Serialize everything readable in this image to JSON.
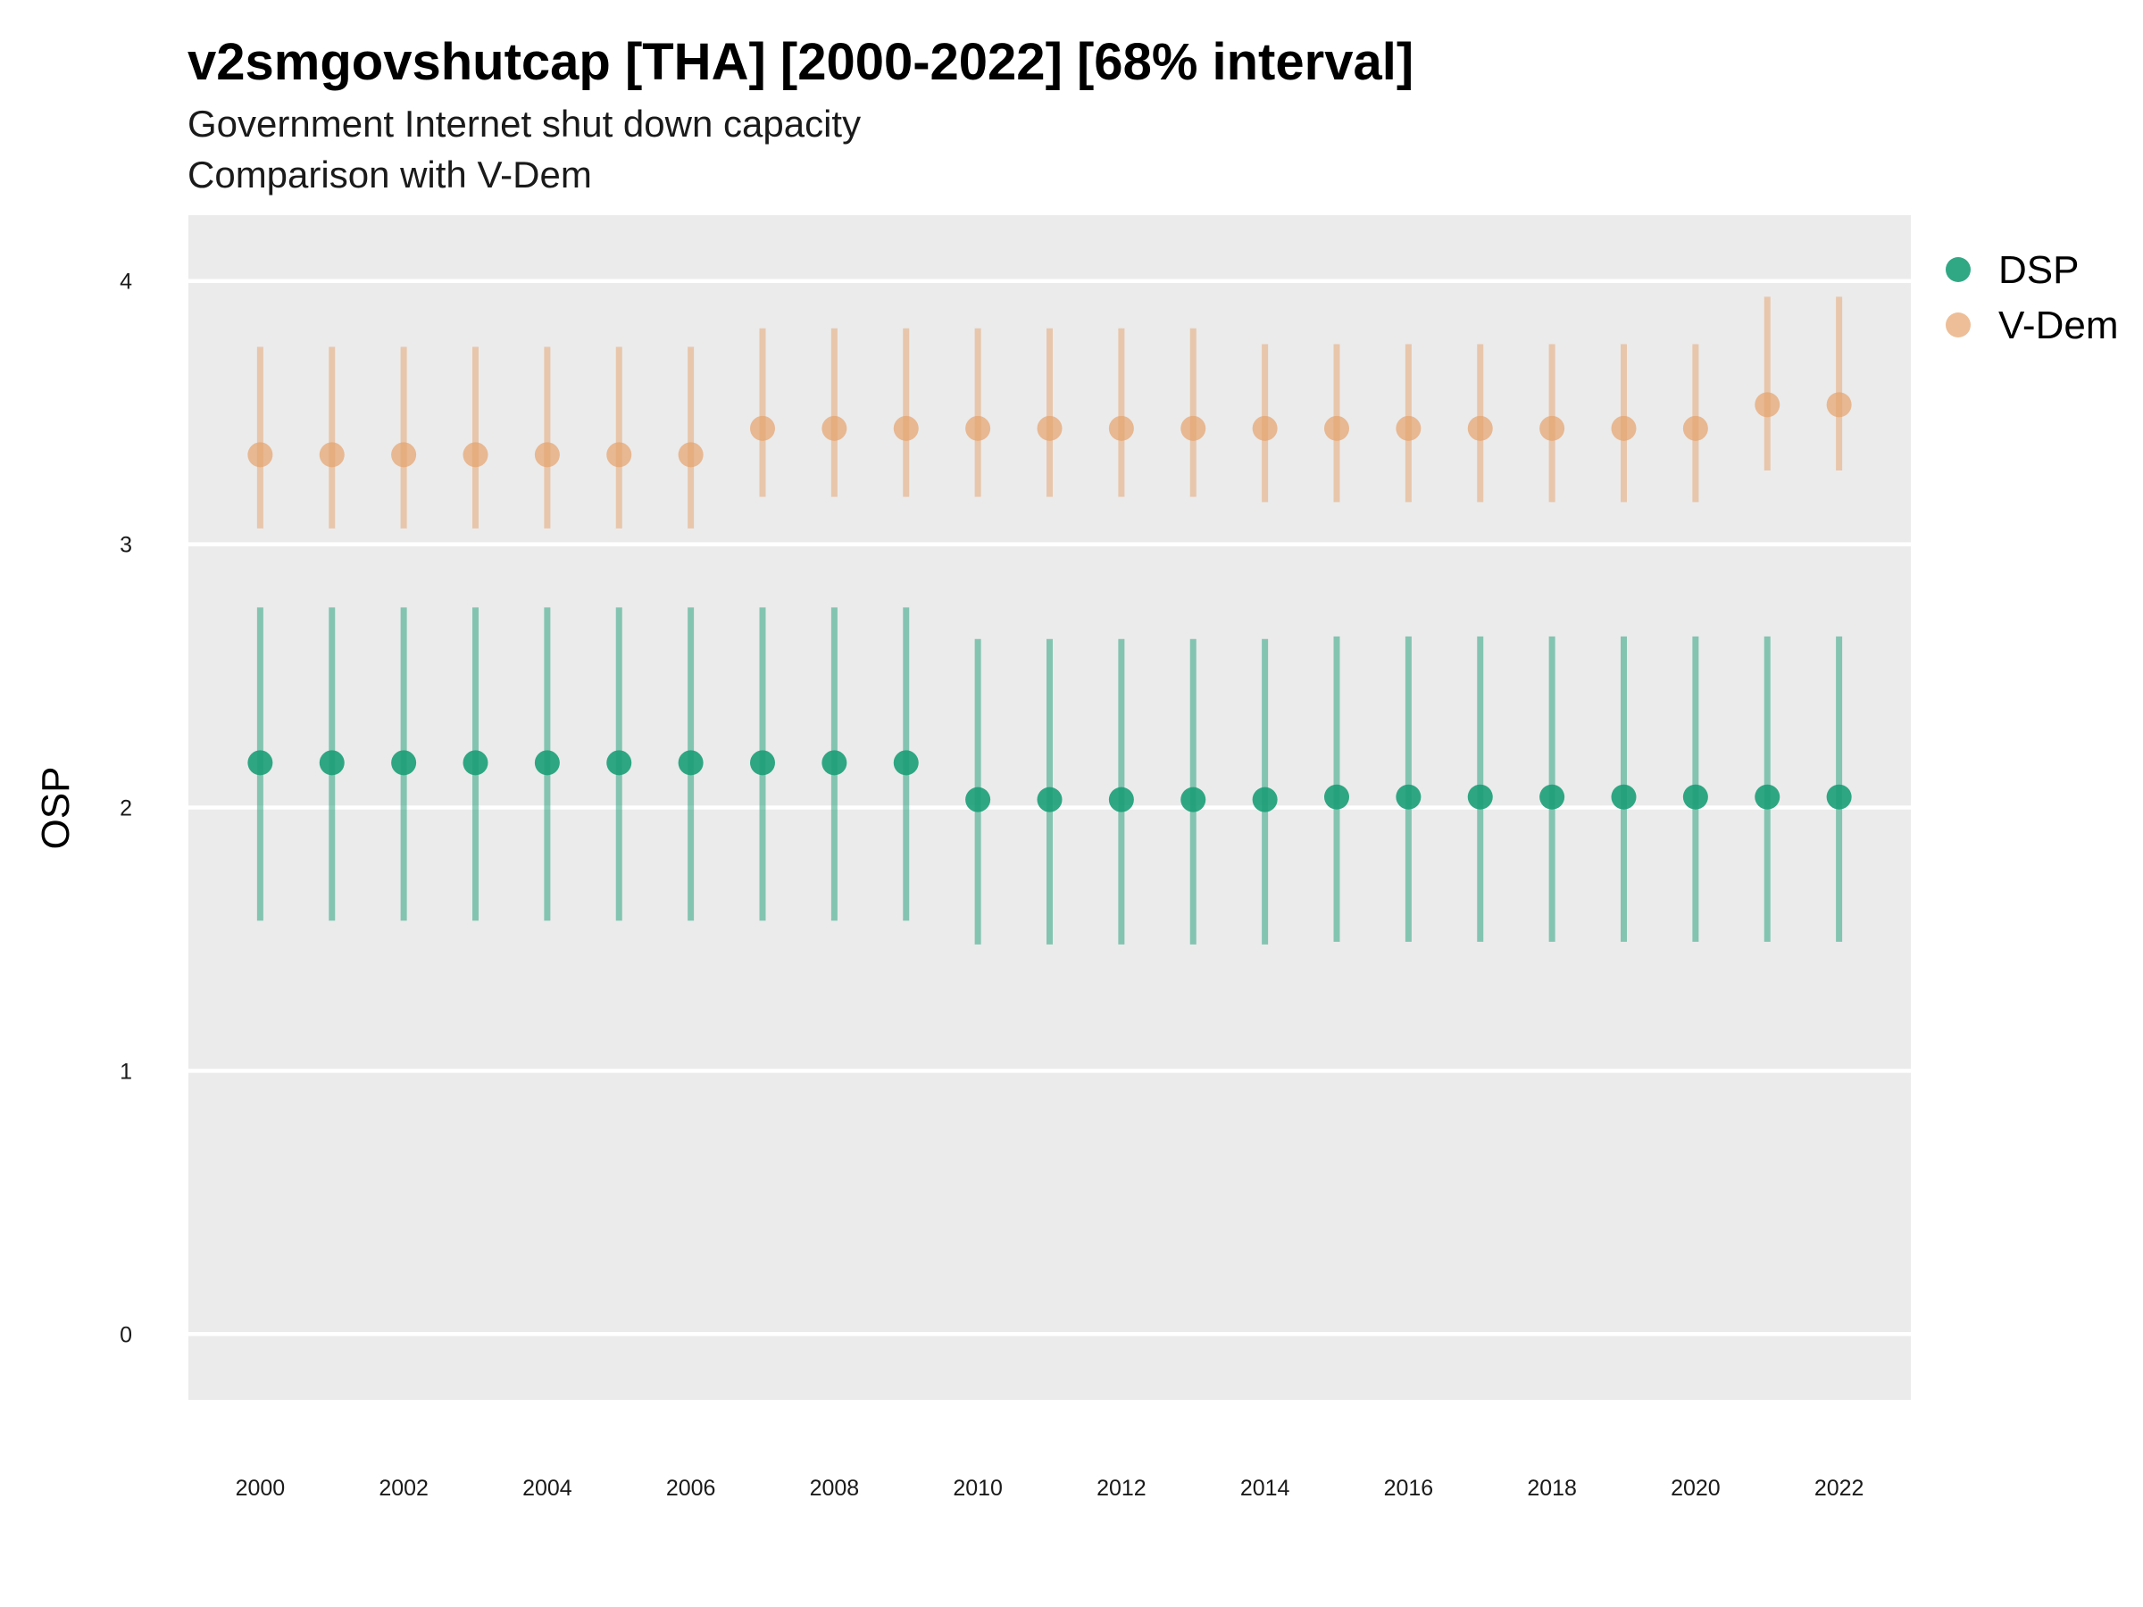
{
  "chart_data": {
    "type": "scatter",
    "title": "v2smgovshutcap [THA] [2000-2022] [68% interval]",
    "subtitle_lines": [
      "Government Internet shut down capacity",
      "Comparison with V-Dem"
    ],
    "xlabel": "",
    "ylabel": "OSP",
    "x": [
      2000,
      2001,
      2002,
      2003,
      2004,
      2005,
      2006,
      2007,
      2008,
      2009,
      2010,
      2011,
      2012,
      2013,
      2014,
      2015,
      2016,
      2017,
      2018,
      2019,
      2020,
      2021,
      2022
    ],
    "x_ticks": [
      "2000",
      "2002",
      "2004",
      "2006",
      "2008",
      "2010",
      "2012",
      "2014",
      "2016",
      "2018",
      "2020",
      "2022"
    ],
    "x_tick_values": [
      2000,
      2002,
      2004,
      2006,
      2008,
      2010,
      2012,
      2014,
      2016,
      2018,
      2020,
      2022
    ],
    "y_ticks": [
      "0",
      "1",
      "2",
      "3",
      "4"
    ],
    "y_tick_values": [
      0,
      1,
      2,
      3,
      4
    ],
    "xlim": [
      1999,
      2023
    ],
    "ylim": [
      -0.25,
      4.25
    ],
    "grid": true,
    "legend_position": "top-right",
    "series": [
      {
        "name": "DSP",
        "color": "#1b9e77",
        "values": [
          2.17,
          2.17,
          2.17,
          2.17,
          2.17,
          2.17,
          2.17,
          2.17,
          2.17,
          2.17,
          2.03,
          2.03,
          2.03,
          2.03,
          2.03,
          2.04,
          2.04,
          2.04,
          2.04,
          2.04,
          2.04,
          2.04,
          2.04
        ],
        "lower": [
          1.57,
          1.57,
          1.57,
          1.57,
          1.57,
          1.57,
          1.57,
          1.57,
          1.57,
          1.57,
          1.48,
          1.48,
          1.48,
          1.48,
          1.48,
          1.49,
          1.49,
          1.49,
          1.49,
          1.49,
          1.49,
          1.49,
          1.49
        ],
        "upper": [
          2.76,
          2.76,
          2.76,
          2.76,
          2.76,
          2.76,
          2.76,
          2.76,
          2.76,
          2.76,
          2.64,
          2.64,
          2.64,
          2.64,
          2.64,
          2.65,
          2.65,
          2.65,
          2.65,
          2.65,
          2.65,
          2.65,
          2.65
        ]
      },
      {
        "name": "V-Dem",
        "color": "#e6a26c",
        "values": [
          3.34,
          3.34,
          3.34,
          3.34,
          3.34,
          3.34,
          3.34,
          3.44,
          3.44,
          3.44,
          3.44,
          3.44,
          3.44,
          3.44,
          3.44,
          3.44,
          3.44,
          3.44,
          3.44,
          3.44,
          3.44,
          3.53,
          3.53
        ],
        "lower": [
          3.06,
          3.06,
          3.06,
          3.06,
          3.06,
          3.06,
          3.06,
          3.18,
          3.18,
          3.18,
          3.18,
          3.18,
          3.18,
          3.18,
          3.16,
          3.16,
          3.16,
          3.16,
          3.16,
          3.16,
          3.16,
          3.28,
          3.28
        ],
        "upper": [
          3.75,
          3.75,
          3.75,
          3.75,
          3.75,
          3.75,
          3.75,
          3.82,
          3.82,
          3.82,
          3.82,
          3.82,
          3.82,
          3.82,
          3.76,
          3.76,
          3.76,
          3.76,
          3.76,
          3.76,
          3.76,
          3.94,
          3.94
        ]
      }
    ]
  }
}
